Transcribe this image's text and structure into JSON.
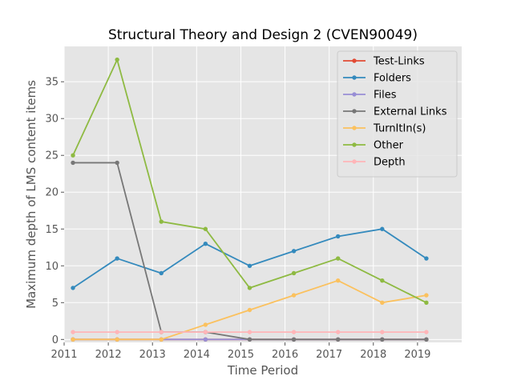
{
  "chart_data": {
    "type": "line",
    "title": "Structural Theory and Design 2 (CVEN90049)",
    "xlabel": "Time Period",
    "ylabel": "Maximum depth of LMS content items",
    "xlim": [
      2011,
      2020
    ],
    "ylim": [
      -0.4,
      39.8
    ],
    "x_ticks": [
      "2011",
      "2012",
      "2013",
      "2014",
      "2015",
      "2016",
      "2017",
      "2018",
      "2019"
    ],
    "y_ticks": [
      "0",
      "5",
      "10",
      "15",
      "20",
      "25",
      "30",
      "35"
    ],
    "grid": true,
    "legend_position": "top-right",
    "x": [
      2011.2,
      2012.2,
      2013.2,
      2014.2,
      2015.2,
      2016.2,
      2017.2,
      2018.2,
      2019.2
    ],
    "series": [
      {
        "name": "Test-Links",
        "color": "#e24a33",
        "values": [
          0,
          0,
          0,
          0,
          0,
          0,
          0,
          0,
          0
        ]
      },
      {
        "name": "Folders",
        "color": "#348abd",
        "values": [
          7,
          11,
          9,
          13,
          10,
          12,
          14,
          15,
          11
        ]
      },
      {
        "name": "Files",
        "color": "#988ed5",
        "values": [
          0,
          0,
          0,
          0,
          0,
          0,
          0,
          0,
          0
        ]
      },
      {
        "name": "External Links",
        "color": "#777777",
        "values": [
          24,
          24,
          1,
          1,
          0,
          0,
          0,
          0,
          0
        ]
      },
      {
        "name": "TurnItIn(s)",
        "color": "#fbc15e",
        "values": [
          0,
          0,
          0,
          2,
          4,
          6,
          8,
          5,
          6
        ]
      },
      {
        "name": "Other",
        "color": "#8eba42",
        "values": [
          25,
          38,
          16,
          15,
          7,
          9,
          11,
          8,
          5
        ]
      },
      {
        "name": "Depth",
        "color": "#ffb5b8",
        "values": [
          1,
          1,
          1,
          1,
          1,
          1,
          1,
          1,
          1
        ]
      }
    ]
  }
}
